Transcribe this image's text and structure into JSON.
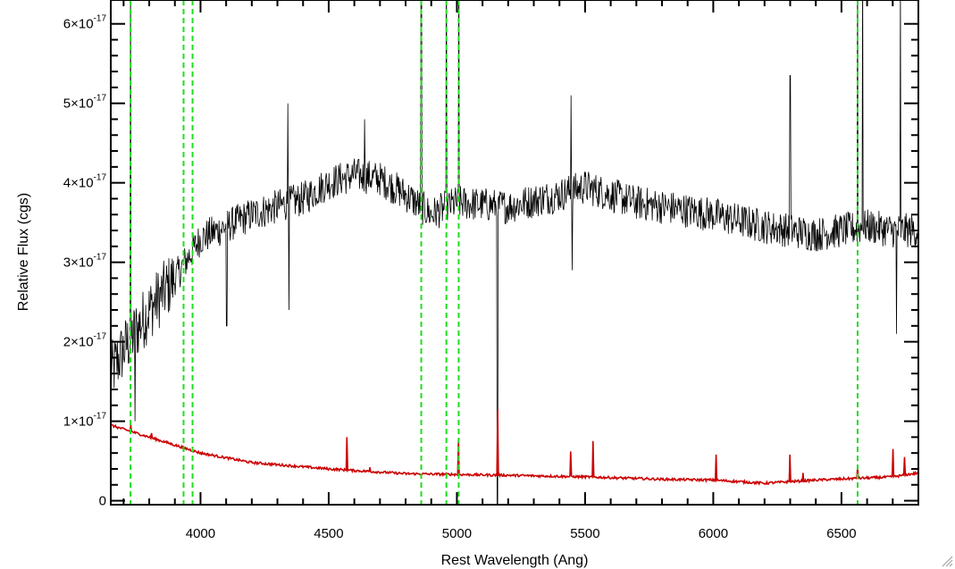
{
  "chart_data": {
    "type": "line",
    "xlabel": "Rest Wavelength (Ang)",
    "ylabel": "Relative Flux (cgs)",
    "xlim": [
      3650,
      6800
    ],
    "ylim": [
      -0.05,
      6.3
    ],
    "y_scale_note": "y values in units of 1e-17",
    "x_ticks": [
      4000,
      4500,
      5000,
      5500,
      6000,
      6500
    ],
    "x_tick_labels": [
      "4000",
      "4500",
      "5000",
      "5500",
      "6000",
      "6500"
    ],
    "y_ticks": [
      {
        "value": 0,
        "mantissa": "0",
        "exponent": ""
      },
      {
        "value": 1,
        "mantissa": "1×10",
        "exponent": "-17"
      },
      {
        "value": 2,
        "mantissa": "2×10",
        "exponent": "-17"
      },
      {
        "value": 3,
        "mantissa": "3×10",
        "exponent": "-17"
      },
      {
        "value": 4,
        "mantissa": "4×10",
        "exponent": "-17"
      },
      {
        "value": 5,
        "mantissa": "5×10",
        "exponent": "-17"
      },
      {
        "value": 6,
        "mantissa": "6×10",
        "exponent": "-17"
      }
    ],
    "vertical_lines": [
      3727,
      3934,
      3969,
      4861,
      4959,
      5007,
      6563
    ],
    "vertical_line_color": "#22dd22",
    "series": [
      {
        "color": "#000000",
        "continuum": [
          [
            3650,
            1.6
          ],
          [
            3700,
            1.9
          ],
          [
            3800,
            2.4
          ],
          [
            3900,
            2.8
          ],
          [
            4000,
            3.3
          ],
          [
            4200,
            3.6
          ],
          [
            4400,
            3.8
          ],
          [
            4500,
            4.0
          ],
          [
            4600,
            4.1
          ],
          [
            4700,
            4.05
          ],
          [
            4800,
            3.85
          ],
          [
            4900,
            3.6
          ],
          [
            5000,
            3.75
          ],
          [
            5200,
            3.7
          ],
          [
            5400,
            3.85
          ],
          [
            5500,
            3.95
          ],
          [
            5700,
            3.75
          ],
          [
            6000,
            3.6
          ],
          [
            6200,
            3.45
          ],
          [
            6400,
            3.35
          ],
          [
            6600,
            3.45
          ],
          [
            6700,
            3.4
          ],
          [
            6800,
            3.4
          ]
        ],
        "features": [
          [
            3727,
            7.0
          ],
          [
            3745,
            1.0
          ],
          [
            4102,
            2.2
          ],
          [
            4340,
            5.0
          ],
          [
            4345,
            2.4
          ],
          [
            4640,
            4.8
          ],
          [
            4861,
            7.0
          ],
          [
            4959,
            7.0
          ],
          [
            5007,
            7.0
          ],
          [
            5160,
            6.3
          ],
          [
            5158,
            -0.1
          ],
          [
            5445,
            5.1
          ],
          [
            5450,
            2.9
          ],
          [
            6300,
            5.35
          ],
          [
            6563,
            7.0
          ],
          [
            6583,
            7.0
          ],
          [
            6715,
            2.1
          ],
          [
            6730,
            6.6
          ]
        ],
        "noise": 0.22
      },
      {
        "color": "#cc0000",
        "continuum": [
          [
            3650,
            0.95
          ],
          [
            3800,
            0.8
          ],
          [
            4000,
            0.6
          ],
          [
            4200,
            0.48
          ],
          [
            4500,
            0.4
          ],
          [
            4800,
            0.34
          ],
          [
            5000,
            0.33
          ],
          [
            5200,
            0.32
          ],
          [
            5500,
            0.3
          ],
          [
            5800,
            0.27
          ],
          [
            6000,
            0.26
          ],
          [
            6200,
            0.22
          ],
          [
            6400,
            0.26
          ],
          [
            6700,
            0.3
          ],
          [
            6800,
            0.35
          ]
        ],
        "features": [
          [
            3727,
            0.95
          ],
          [
            3810,
            0.85
          ],
          [
            4570,
            0.8
          ],
          [
            4660,
            0.42
          ],
          [
            5007,
            0.77
          ],
          [
            5160,
            1.15
          ],
          [
            5445,
            0.62
          ],
          [
            5530,
            0.75
          ],
          [
            6010,
            0.58
          ],
          [
            6300,
            0.58
          ],
          [
            6350,
            0.35
          ],
          [
            6563,
            0.45
          ],
          [
            6700,
            0.65
          ],
          [
            6745,
            0.55
          ]
        ],
        "noise": 0.015
      }
    ]
  },
  "ui": {
    "resize_icon": "resize-grip-icon"
  }
}
